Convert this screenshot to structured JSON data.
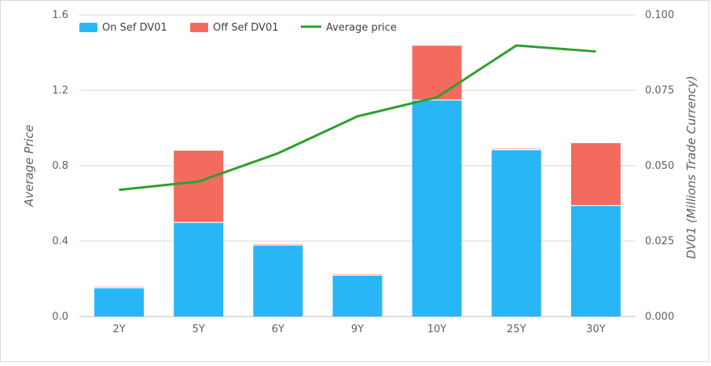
{
  "chart_data": {
    "type": "bar",
    "categories": [
      "2Y",
      "5Y",
      "6Y",
      "9Y",
      "10Y",
      "25Y",
      "30Y"
    ],
    "series": [
      {
        "name": "On Sef DV01",
        "type": "bar",
        "axis": "right",
        "color": "#29b6f6",
        "values": [
          0.0095,
          0.0312,
          0.0237,
          0.0137,
          0.0718,
          0.0553,
          0.0368
        ]
      },
      {
        "name": "Off Sef DV01",
        "type": "bar",
        "axis": "right",
        "color": "#f26b5e",
        "values": [
          0.0003,
          0.0238,
          0.0003,
          0.0003,
          0.018,
          0.0003,
          0.0207
        ]
      },
      {
        "name": "Average price",
        "type": "line",
        "axis": "left",
        "color": "#2ca02c",
        "values": [
          0.672,
          0.716,
          0.866,
          1.062,
          1.163,
          1.438,
          1.406
        ]
      }
    ],
    "y_left": {
      "label": "Average Price",
      "lim": [
        0,
        1.6
      ],
      "ticks": [
        "0.0",
        "0.4",
        "0.8",
        "1.2",
        "1.6"
      ]
    },
    "y_right": {
      "label": "DV01 (Millions Trade Currency)",
      "lim": [
        0,
        0.1
      ],
      "ticks": [
        "0.000",
        "0.025",
        "0.050",
        "0.075",
        "0.100"
      ]
    },
    "xlabel": "",
    "grid": true,
    "legend": "top-left"
  }
}
